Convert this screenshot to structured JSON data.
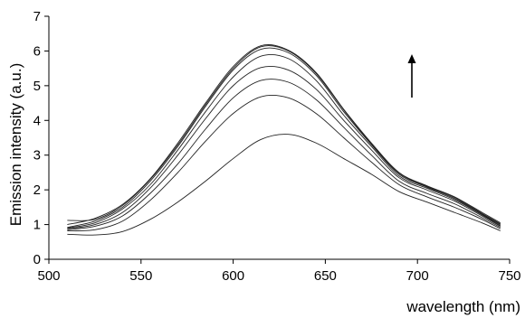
{
  "chart_data": {
    "type": "line",
    "title": "",
    "xlabel": "wavelength (nm)",
    "ylabel": "Emission intensity (a.u.)",
    "xlim": [
      500,
      750
    ],
    "ylim": [
      0,
      7
    ],
    "xticks": [
      "500",
      "550",
      "600",
      "650",
      "700",
      "750"
    ],
    "yticks": [
      "0",
      "1",
      "2",
      "3",
      "4",
      "5",
      "6",
      "7"
    ],
    "grid": false,
    "legend": "none",
    "annotation": "upward-arrow",
    "x": [
      510,
      525,
      540,
      555,
      570,
      585,
      600,
      615,
      630,
      645,
      660,
      675,
      690,
      705,
      720,
      735,
      745
    ],
    "series": [
      {
        "values": [
          0.72,
          0.7,
          0.8,
          1.15,
          1.65,
          2.25,
          2.9,
          3.45,
          3.6,
          3.35,
          2.9,
          2.45,
          1.95,
          1.65,
          1.35,
          1.05,
          0.82
        ]
      },
      {
        "values": [
          0.82,
          0.85,
          1.1,
          1.7,
          2.5,
          3.4,
          4.2,
          4.68,
          4.65,
          4.2,
          3.5,
          2.8,
          2.15,
          1.8,
          1.5,
          1.15,
          0.88
        ]
      },
      {
        "values": [
          0.85,
          0.95,
          1.25,
          1.9,
          2.75,
          3.75,
          4.65,
          5.15,
          5.1,
          4.6,
          3.8,
          3.0,
          2.25,
          1.9,
          1.6,
          1.2,
          0.92
        ]
      },
      {
        "values": [
          0.88,
          1.0,
          1.35,
          2.05,
          3.0,
          4.05,
          5.0,
          5.52,
          5.45,
          4.9,
          4.0,
          3.15,
          2.35,
          2.0,
          1.68,
          1.25,
          0.95
        ]
      },
      {
        "values": [
          0.9,
          1.05,
          1.45,
          2.15,
          3.15,
          4.25,
          5.25,
          5.85,
          5.78,
          5.15,
          4.15,
          3.25,
          2.4,
          2.05,
          1.72,
          1.28,
          0.97
        ]
      },
      {
        "values": [
          0.92,
          1.1,
          1.5,
          2.25,
          3.25,
          4.4,
          5.45,
          6.05,
          5.95,
          5.3,
          4.25,
          3.3,
          2.45,
          2.08,
          1.75,
          1.3,
          1.0
        ]
      },
      {
        "values": [
          1.12,
          1.15,
          1.55,
          2.3,
          3.3,
          4.45,
          5.5,
          6.12,
          6.0,
          5.35,
          4.3,
          3.32,
          2.48,
          2.1,
          1.78,
          1.32,
          1.02
        ]
      },
      {
        "values": [
          1.0,
          1.18,
          1.58,
          2.32,
          3.35,
          4.5,
          5.55,
          6.15,
          6.02,
          5.38,
          4.32,
          3.35,
          2.5,
          2.12,
          1.8,
          1.35,
          1.05
        ]
      }
    ]
  }
}
